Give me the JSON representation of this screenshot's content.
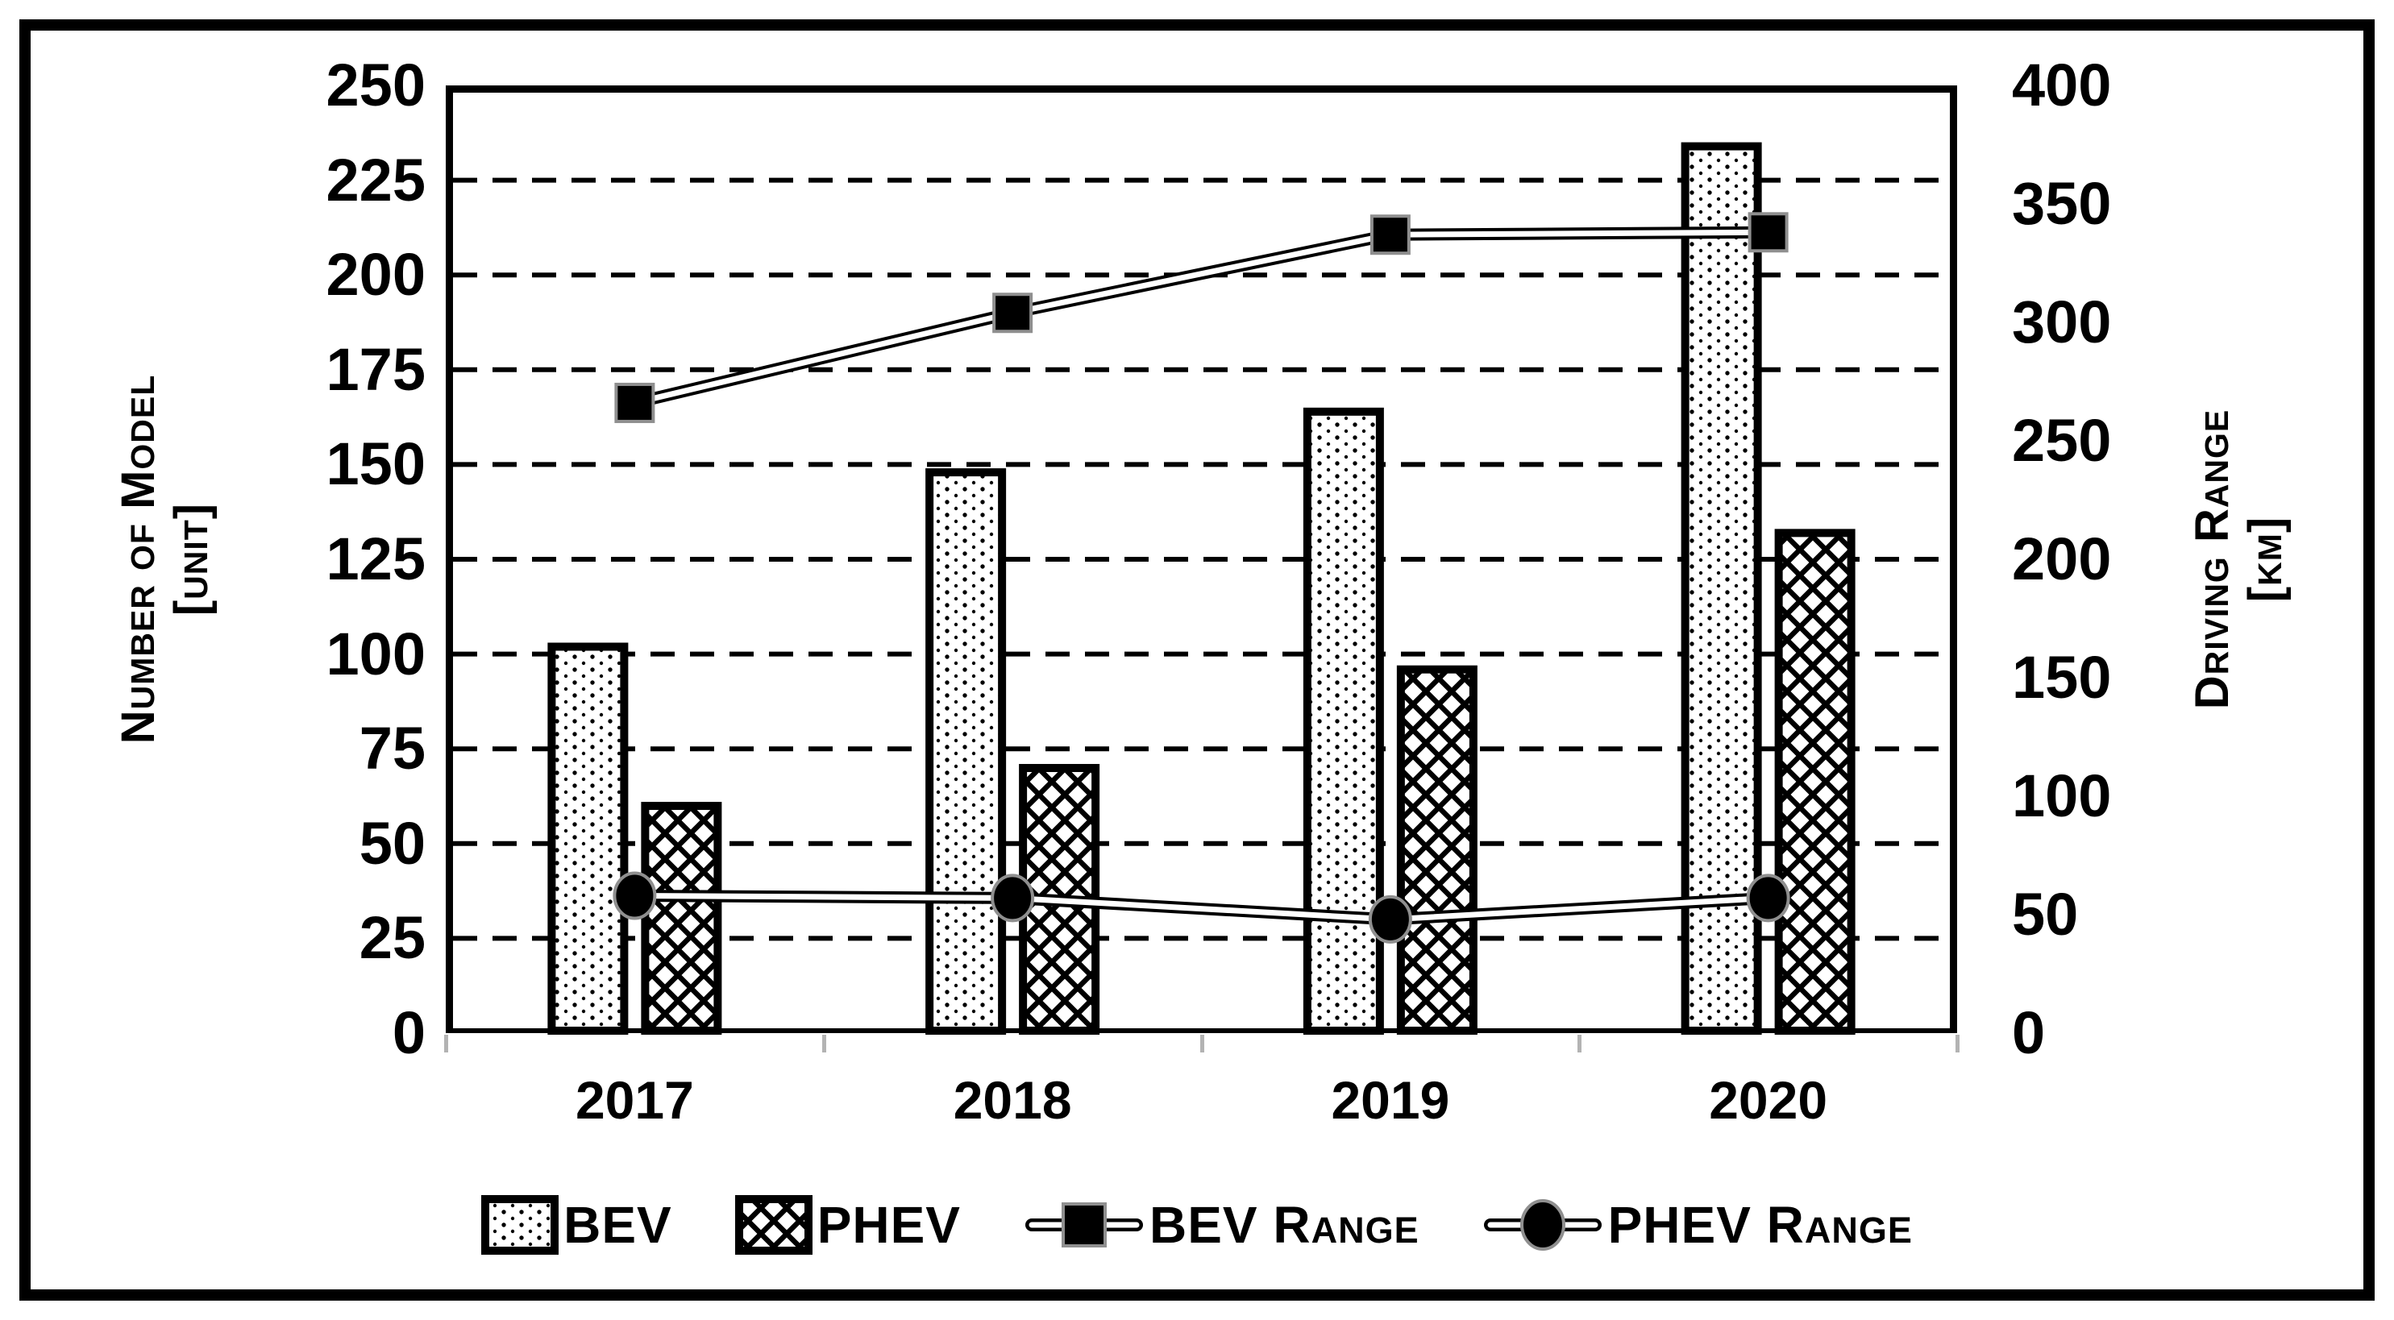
{
  "chart_data": {
    "type": "combo_bar_line",
    "categories": [
      "2017",
      "2018",
      "2019",
      "2020"
    ],
    "bar_series": [
      {
        "name": "BEV",
        "axis": "left",
        "pattern": "dots",
        "values": [
          103,
          149,
          165,
          235
        ]
      },
      {
        "name": "PHEV",
        "axis": "left",
        "pattern": "crosshatch",
        "values": [
          61,
          71,
          97,
          133
        ]
      }
    ],
    "line_series": [
      {
        "name": "BEV Range",
        "axis": "right",
        "marker": "square",
        "values": [
          266,
          304,
          337,
          338
        ]
      },
      {
        "name": "PHEV Range",
        "axis": "right",
        "marker": "circle",
        "values": [
          58,
          57,
          48,
          57
        ]
      }
    ],
    "left_axis": {
      "title_line1": "Number of Model",
      "title_line2": "[unit]",
      "min": 0,
      "max": 250,
      "step": 25,
      "tick_labels": [
        "0",
        "25",
        "50",
        "75",
        "100",
        "125",
        "150",
        "175",
        "200",
        "225",
        "250"
      ]
    },
    "right_axis": {
      "title_line1": "Driving Range",
      "title_line2": "[km]",
      "min": 0,
      "max": 400,
      "step": 50,
      "tick_labels": [
        "0",
        "50",
        "100",
        "150",
        "200",
        "250",
        "300",
        "350",
        "400"
      ]
    },
    "grid": {
      "horizontal": "dashed",
      "vertical": "none"
    },
    "legend": {
      "position": "bottom",
      "items": [
        {
          "label": "BEV",
          "swatch": "dots"
        },
        {
          "label": "PHEV",
          "swatch": "crosshatch"
        },
        {
          "label": "BEV Range",
          "swatch": "line-square"
        },
        {
          "label": "PHEV Range",
          "swatch": "line-circle"
        }
      ]
    }
  },
  "colors": {
    "ink": "#000000",
    "paper": "#ffffff",
    "marker_halo": "#8f8f8f",
    "boundary_tick": "#b3b3b3"
  }
}
